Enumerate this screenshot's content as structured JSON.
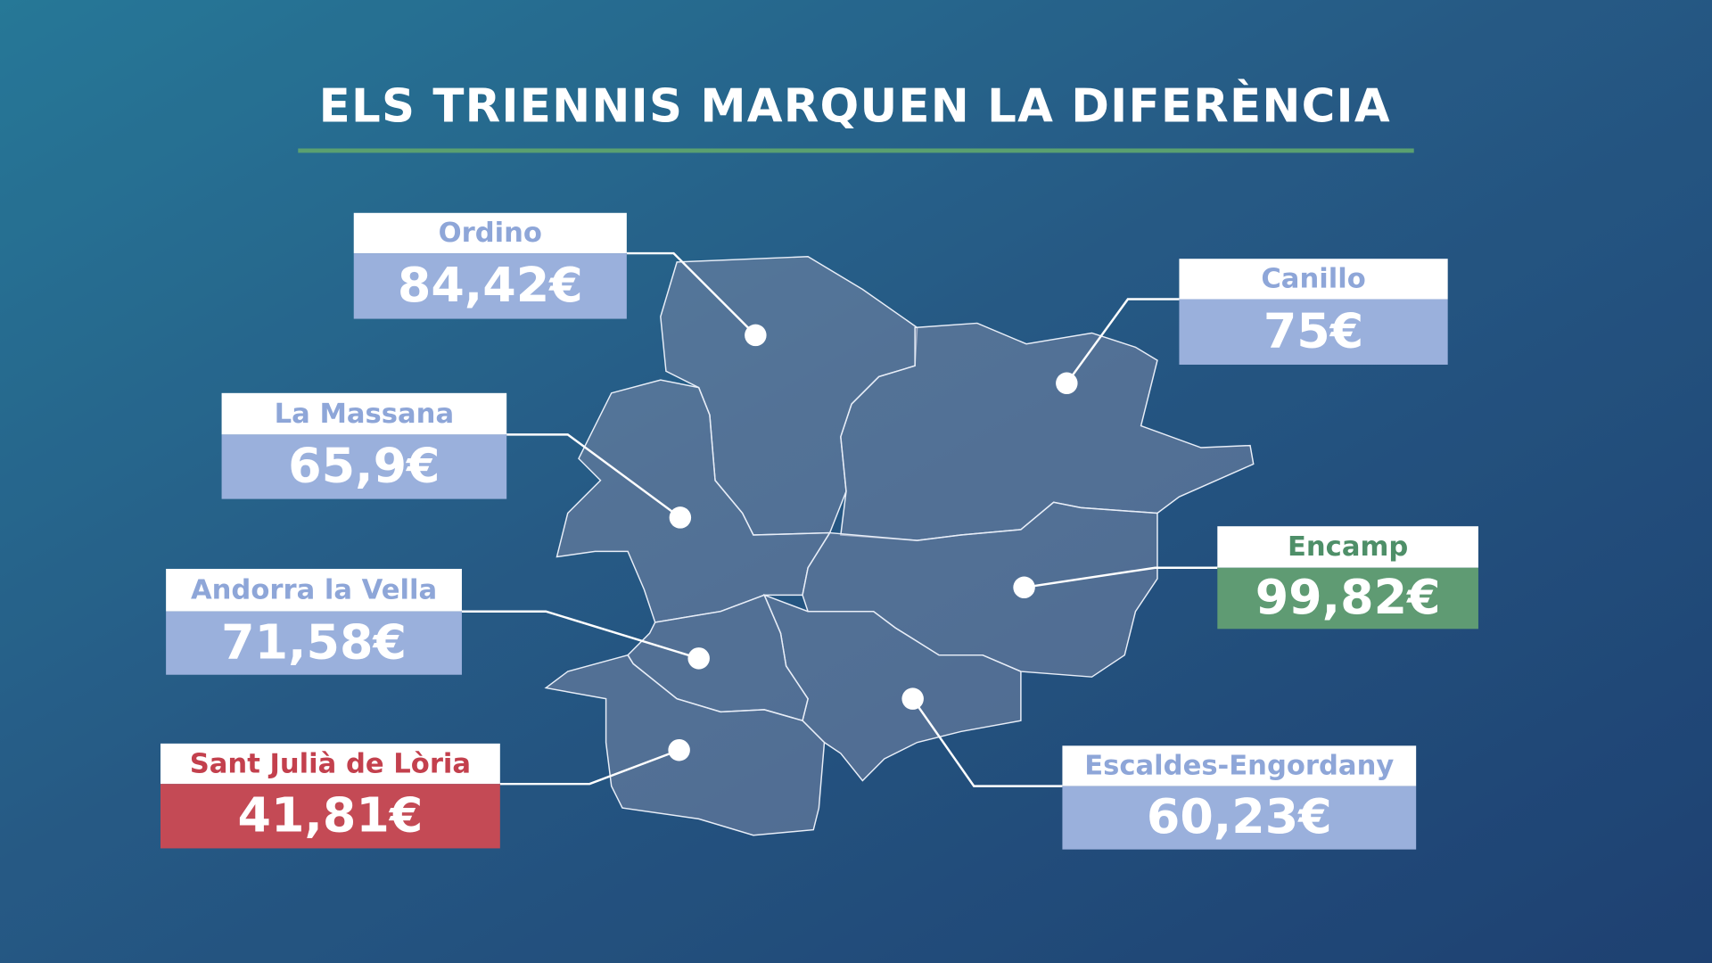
{
  "title": "ELS TRIENNIS MARQUEN LA DIFERÈNCIA",
  "parishes": [
    {
      "name": "Ordino",
      "value": "84,42€"
    },
    {
      "name": "Canillo",
      "value": "75€"
    },
    {
      "name": "La Massana",
      "value": "65,9€"
    },
    {
      "name": "Andorra la Vella",
      "value": "71,58€"
    },
    {
      "name": "Sant Julià de Lòria",
      "value": "41,81€"
    },
    {
      "name": "Encamp",
      "value": "99,82€"
    },
    {
      "name": "Escaldes-Engordany",
      "value": "60,23€"
    }
  ]
}
